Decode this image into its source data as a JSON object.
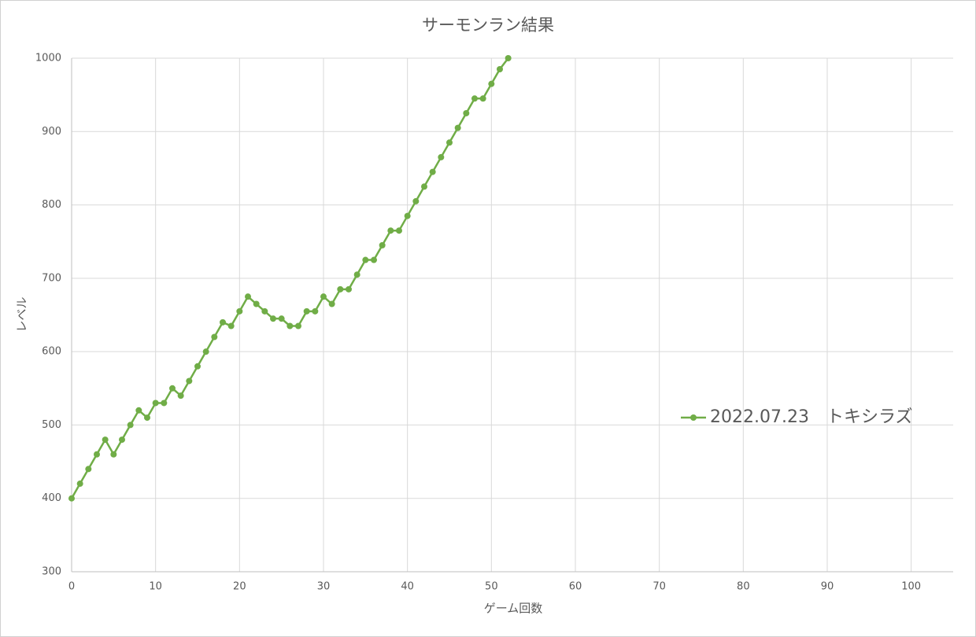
{
  "chart_data": {
    "type": "line",
    "title": "サーモンラン結果",
    "x_label": "ゲーム回数",
    "y_label": "レベル",
    "x": [
      0,
      1,
      2,
      3,
      4,
      5,
      6,
      7,
      8,
      9,
      10,
      11,
      12,
      13,
      14,
      15,
      16,
      17,
      18,
      19,
      20,
      21,
      22,
      23,
      24,
      25,
      26,
      27,
      28,
      29,
      30,
      31,
      32,
      33,
      34,
      35,
      36,
      37,
      38,
      39,
      40,
      41,
      42,
      43,
      44,
      45,
      46,
      47,
      48,
      49,
      50,
      51,
      52
    ],
    "series": [
      {
        "name": "2022.07.23　トキシラズ",
        "color": "#70ad47",
        "values": [
          400,
          420,
          440,
          460,
          480,
          460,
          480,
          500,
          520,
          510,
          530,
          530,
          550,
          540,
          560,
          580,
          600,
          620,
          640,
          635,
          655,
          675,
          665,
          655,
          645,
          645,
          635,
          635,
          655,
          655,
          675,
          665,
          685,
          685,
          705,
          725,
          725,
          745,
          765,
          765,
          785,
          805,
          825,
          845,
          865,
          885,
          905,
          925,
          945,
          945,
          965,
          985,
          1000
        ]
      }
    ],
    "xlim": [
      0,
      105
    ],
    "xticks": [
      0,
      10,
      20,
      30,
      40,
      50,
      60,
      70,
      80,
      90,
      100
    ],
    "ylim": [
      300,
      1000
    ],
    "yticks": [
      300,
      400,
      500,
      600,
      700,
      800,
      900,
      1000
    ],
    "grid": true,
    "legend": "right"
  }
}
